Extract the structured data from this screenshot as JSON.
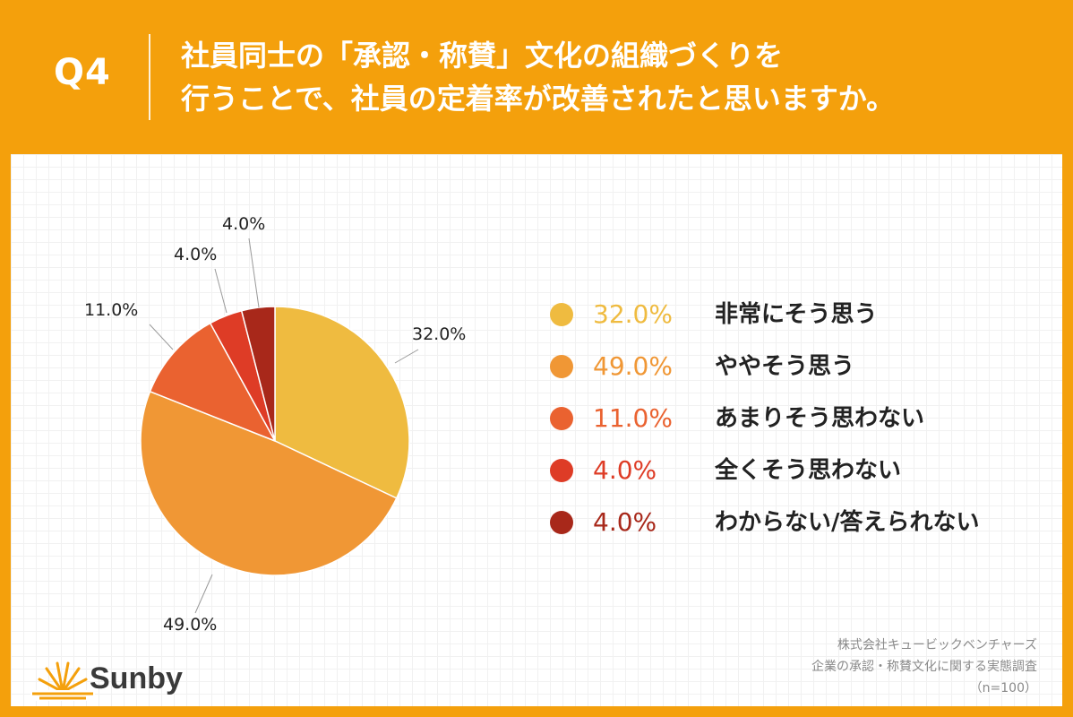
{
  "header": {
    "q_label": "Q4",
    "question_line1": "社員同士の「承認・称賛」文化の組織づくりを",
    "question_line2": "行うことで、社員の定着率が改善されたと思いますか。"
  },
  "chart_data": {
    "type": "pie",
    "title": "",
    "slices": [
      {
        "label": "非常にそう思う",
        "value": 32.0,
        "value_label": "32.0%",
        "color": "#EFBB40"
      },
      {
        "label": "ややそう思う",
        "value": 49.0,
        "value_label": "49.0%",
        "color": "#F09735"
      },
      {
        "label": "あまりそう思わない",
        "value": 11.0,
        "value_label": "11.0%",
        "color": "#EA6230"
      },
      {
        "label": "全くそう思わない",
        "value": 4.0,
        "value_label": "4.0%",
        "color": "#DE3C26"
      },
      {
        "label": "わからない/答えられない",
        "value": 4.0,
        "value_label": "4.0%",
        "color": "#A8281A"
      }
    ],
    "legend_position": "right"
  },
  "footer": {
    "logo_text": "Sunby",
    "source_line1": "株式会社キュービックベンチャーズ",
    "source_line2": "企業の承認・称賛文化に関する実態調査",
    "source_line3": "（n=100）"
  },
  "colors": {
    "background": "#F4A00C",
    "panel": "#ffffff"
  }
}
